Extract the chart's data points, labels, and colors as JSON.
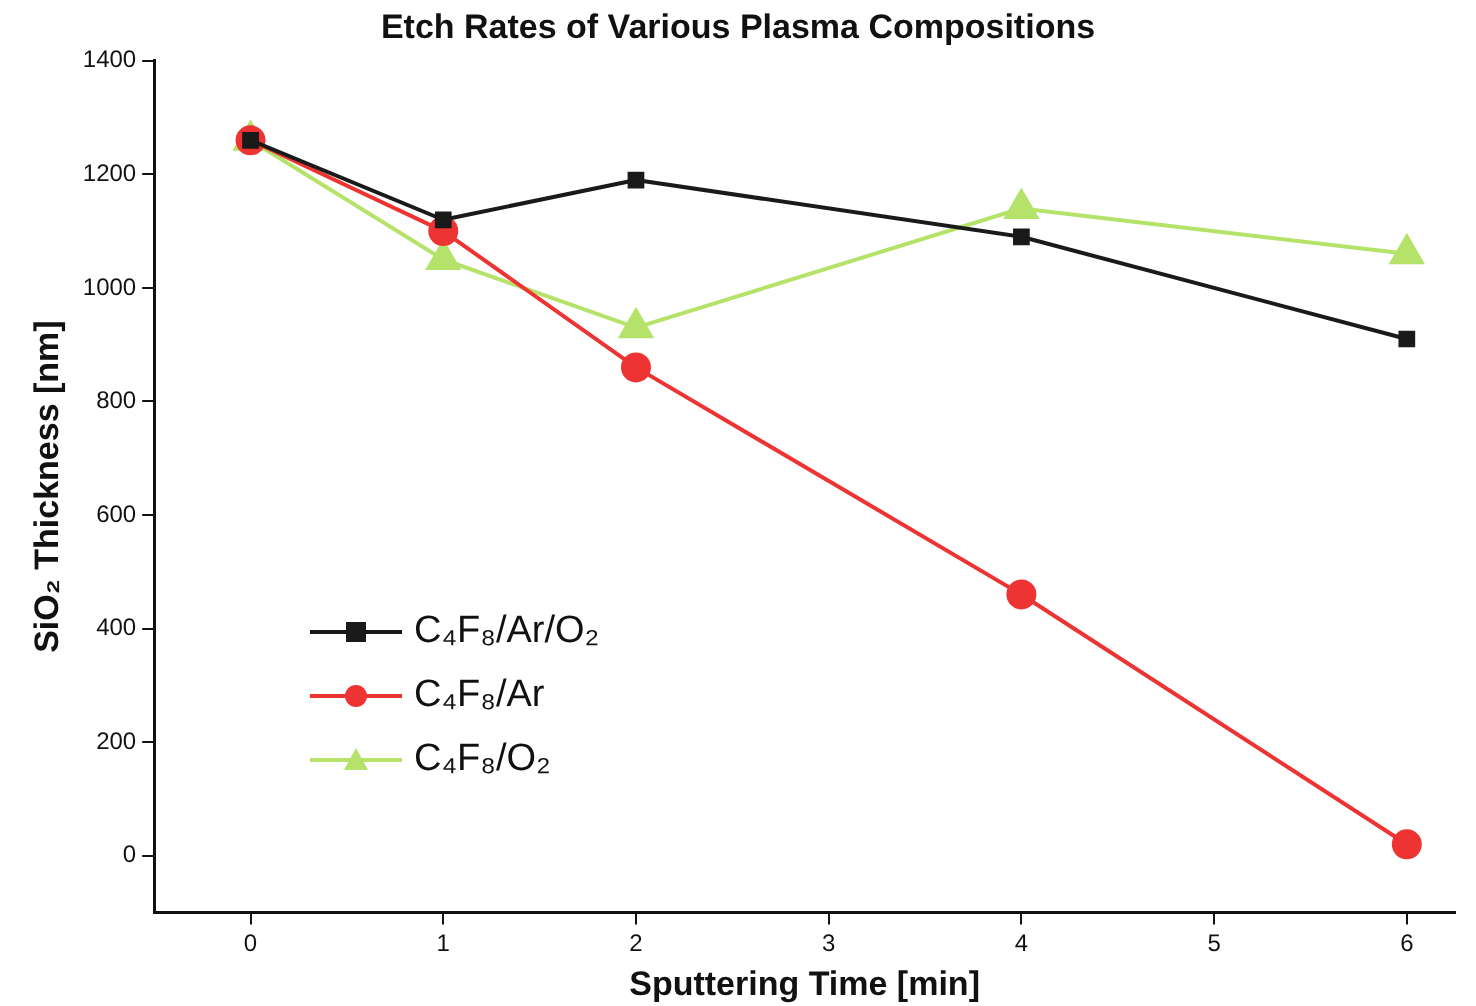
{
  "chart_data": {
    "type": "line",
    "title": "Etch Rates of Various Plasma Compositions",
    "xlabel": "Sputtering Time [min]",
    "ylabel": "SiO₂ Thickness [nm]",
    "x": [
      0,
      1,
      2,
      4,
      6
    ],
    "series": [
      {
        "name": "C₄F₈/Ar/O₂",
        "color": "#1a1a1a",
        "marker": "square",
        "values": [
          1260,
          1120,
          1190,
          1090,
          910
        ]
      },
      {
        "name": "C₄F₈/Ar",
        "color": "#ee3333",
        "marker": "circle",
        "values": [
          1260,
          1100,
          860,
          460,
          20
        ]
      },
      {
        "name": "C₄F₈/O₂",
        "color": "#b5e36a",
        "marker": "triangle",
        "values": [
          1260,
          1050,
          930,
          1140,
          1060
        ]
      }
    ],
    "xlim": [
      -0.5,
      6.25
    ],
    "xticks": [
      0,
      1,
      2,
      3,
      4,
      5,
      6
    ],
    "ylim": [
      -100,
      1400
    ],
    "yticks": [
      0,
      200,
      400,
      600,
      800,
      1000,
      1200,
      1400
    ],
    "grid": false,
    "legend": "left",
    "line_style": "solid"
  }
}
